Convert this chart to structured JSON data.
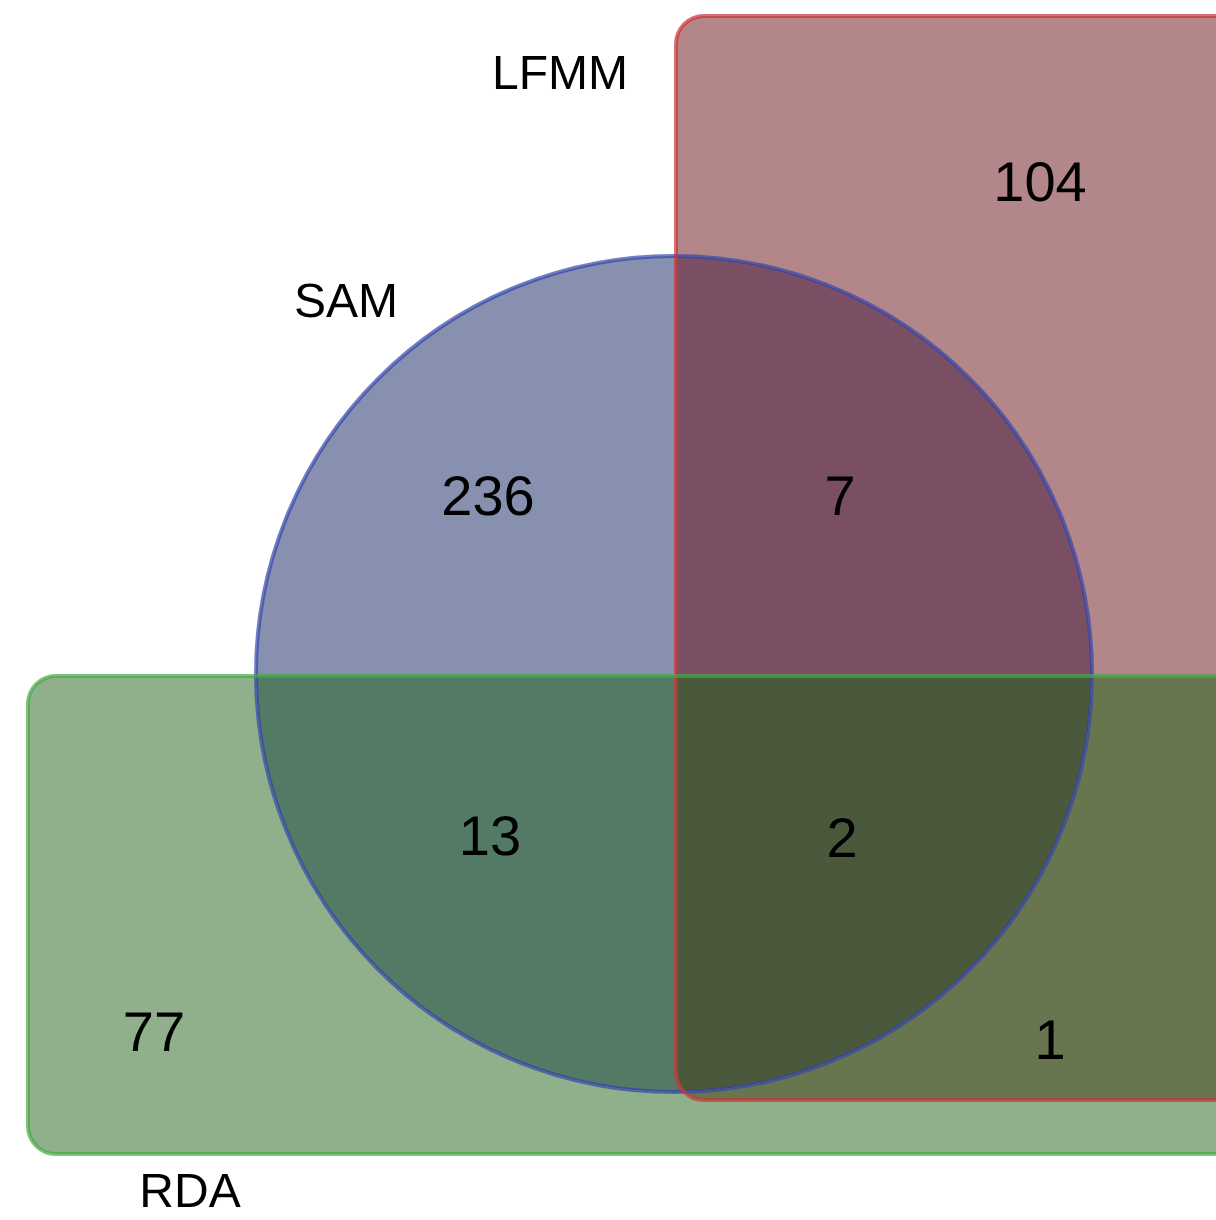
{
  "chart_data": {
    "type": "other",
    "categories": [
      null,
      null,
      null,
      null,
      null,
      null,
      null
    ],
    "values": [
      104,
      236,
      7,
      13,
      2,
      77,
      1
    ],
    "colors": [
      "#b3878a",
      "#8890b0",
      "#7a4f64",
      "#527a64",
      "#4a583c",
      "#8fb08a",
      "#687650"
    ],
    "data_labels": true,
    "annotations": [
      "SAM",
      "LFMM",
      "RDA"
    ]
  }
}
